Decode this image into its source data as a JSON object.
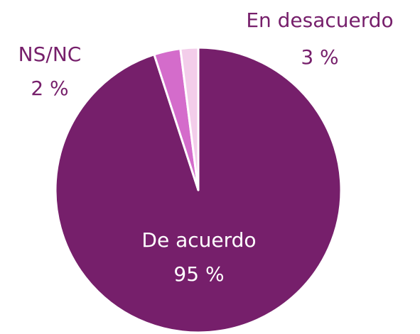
{
  "chart_data": {
    "type": "pie",
    "categories": [
      "De acuerdo",
      "En desacuerdo",
      "NS/NC"
    ],
    "values": [
      95,
      3,
      2
    ],
    "value_labels": [
      "95 %",
      "3 %",
      "2 %"
    ],
    "colors": [
      "#761f6b",
      "#d46ccb",
      "#f3cdea"
    ],
    "label_color": "#761f6b"
  }
}
